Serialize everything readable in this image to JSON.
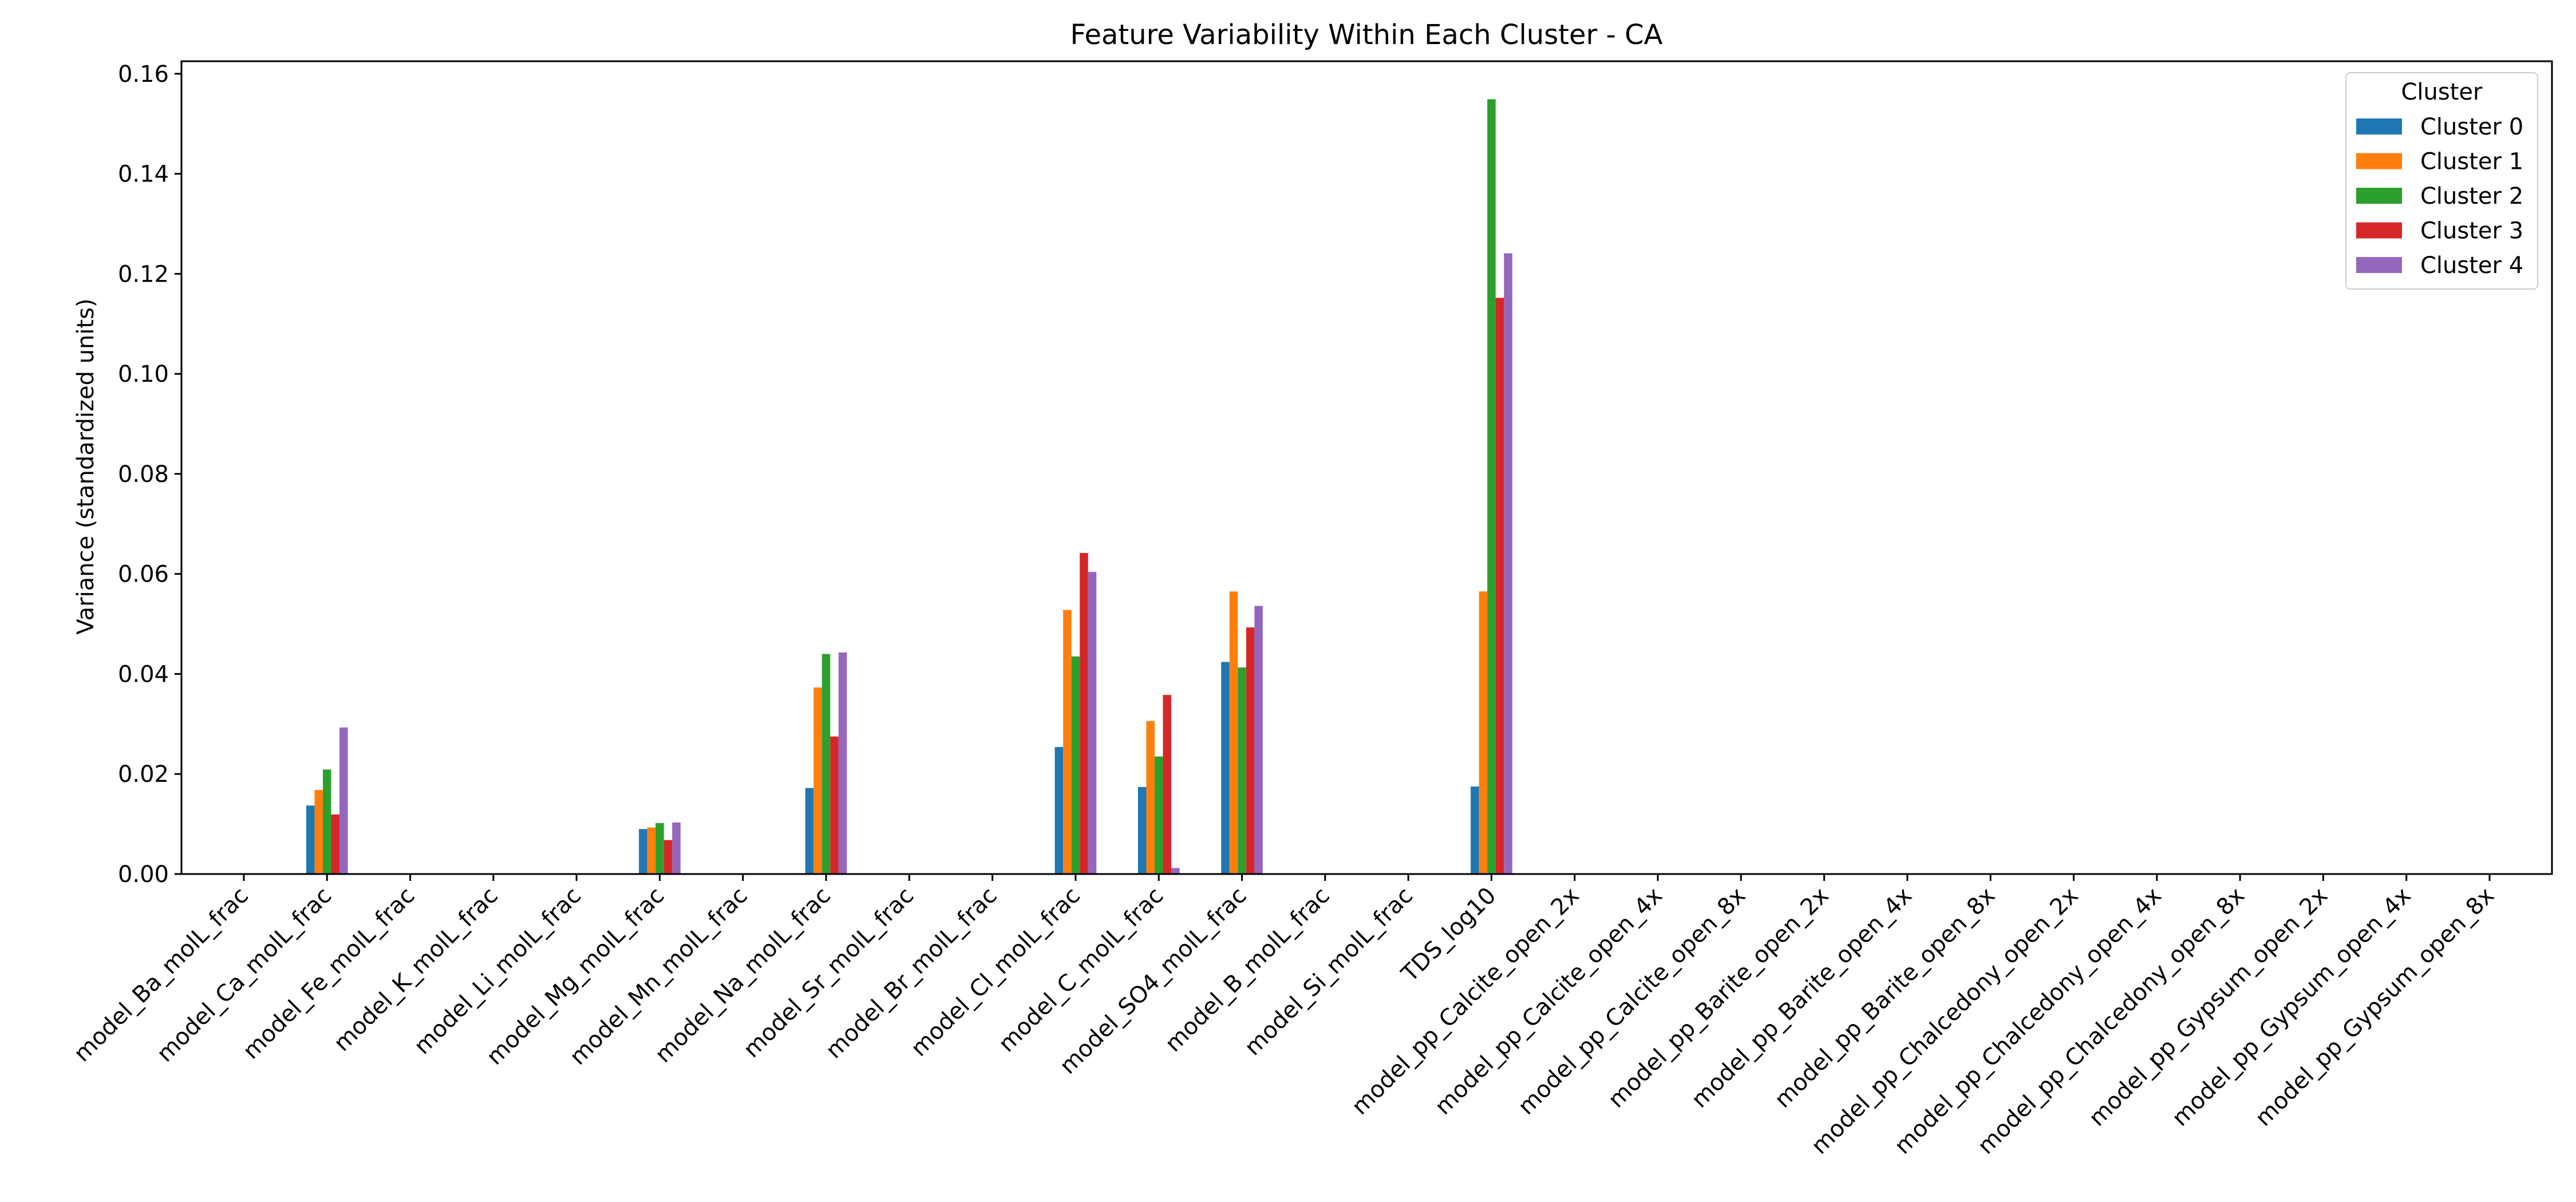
{
  "chart_data": {
    "type": "bar",
    "title": "Feature Variability Within Each Cluster - CA",
    "xlabel": "",
    "ylabel": "Variance (standardized units)",
    "ylim": [
      0,
      0.1625
    ],
    "yticks": [
      0.0,
      0.02,
      0.04,
      0.06,
      0.08,
      0.1,
      0.12,
      0.14,
      0.16
    ],
    "ytick_labels": [
      "0.00",
      "0.02",
      "0.04",
      "0.06",
      "0.08",
      "0.10",
      "0.12",
      "0.14",
      "0.16"
    ],
    "grid": false,
    "legend": {
      "title": "Cluster",
      "placement": "top-right"
    },
    "categories": [
      "model_Ba_molL_frac",
      "model_Ca_molL_frac",
      "model_Fe_molL_frac",
      "model_K_molL_frac",
      "model_Li_molL_frac",
      "model_Mg_molL_frac",
      "model_Mn_molL_frac",
      "model_Na_molL_frac",
      "model_Sr_molL_frac",
      "model_Br_molL_frac",
      "model_Cl_molL_frac",
      "model_C_molL_frac",
      "model_SO4_molL_frac",
      "model_B_molL_frac",
      "model_Si_molL_frac",
      "TDS_log10",
      "model_pp_Calcite_open_2x",
      "model_pp_Calcite_open_4x",
      "model_pp_Calcite_open_8x",
      "model_pp_Barite_open_2x",
      "model_pp_Barite_open_4x",
      "model_pp_Barite_open_8x",
      "model_pp_Chalcedony_open_2x",
      "model_pp_Chalcedony_open_4x",
      "model_pp_Chalcedony_open_8x",
      "model_pp_Gypsum_open_2x",
      "model_pp_Gypsum_open_4x",
      "model_pp_Gypsum_open_8x"
    ],
    "series": [
      {
        "name": "Cluster 0",
        "color": "#1f77b4",
        "values": [
          0,
          0.0137,
          0,
          0,
          0,
          0.009,
          0,
          0.0172,
          0,
          0,
          0.0254,
          0.0174,
          0.0424,
          0,
          0,
          0.0175,
          0,
          0,
          0,
          0,
          0,
          0,
          0,
          0,
          0,
          0,
          0,
          0
        ]
      },
      {
        "name": "Cluster 1",
        "color": "#ff7f0e",
        "values": [
          0,
          0.0168,
          0,
          0,
          0,
          0.0093,
          0,
          0.0373,
          0,
          0,
          0.0528,
          0.0306,
          0.0565,
          0,
          0,
          0.0565,
          0,
          0,
          0,
          0,
          0,
          0,
          0,
          0,
          0,
          0,
          0,
          0
        ]
      },
      {
        "name": "Cluster 2",
        "color": "#2ca02c",
        "values": [
          0,
          0.0209,
          0,
          0,
          0,
          0.0102,
          0,
          0.044,
          0,
          0,
          0.0435,
          0.0235,
          0.0413,
          0,
          0,
          0.1549,
          0,
          0,
          0,
          0,
          0,
          0,
          0,
          0,
          0,
          0,
          0,
          0
        ]
      },
      {
        "name": "Cluster 3",
        "color": "#d62728",
        "values": [
          0,
          0.0119,
          0,
          0,
          0,
          0.0068,
          0,
          0.0275,
          0,
          0,
          0.0642,
          0.0358,
          0.0493,
          0,
          0,
          0.1152,
          0,
          0,
          0,
          0,
          0,
          0,
          0,
          0,
          0,
          0,
          0,
          0
        ]
      },
      {
        "name": "Cluster 4",
        "color": "#9467bd",
        "values": [
          0,
          0.0293,
          0,
          0,
          0,
          0.0103,
          0,
          0.0443,
          0,
          0,
          0.0604,
          0.0012,
          0.0536,
          0,
          0,
          0.1241,
          0,
          0,
          0,
          0,
          0,
          0,
          0,
          0,
          0,
          0,
          0,
          0
        ]
      }
    ]
  }
}
